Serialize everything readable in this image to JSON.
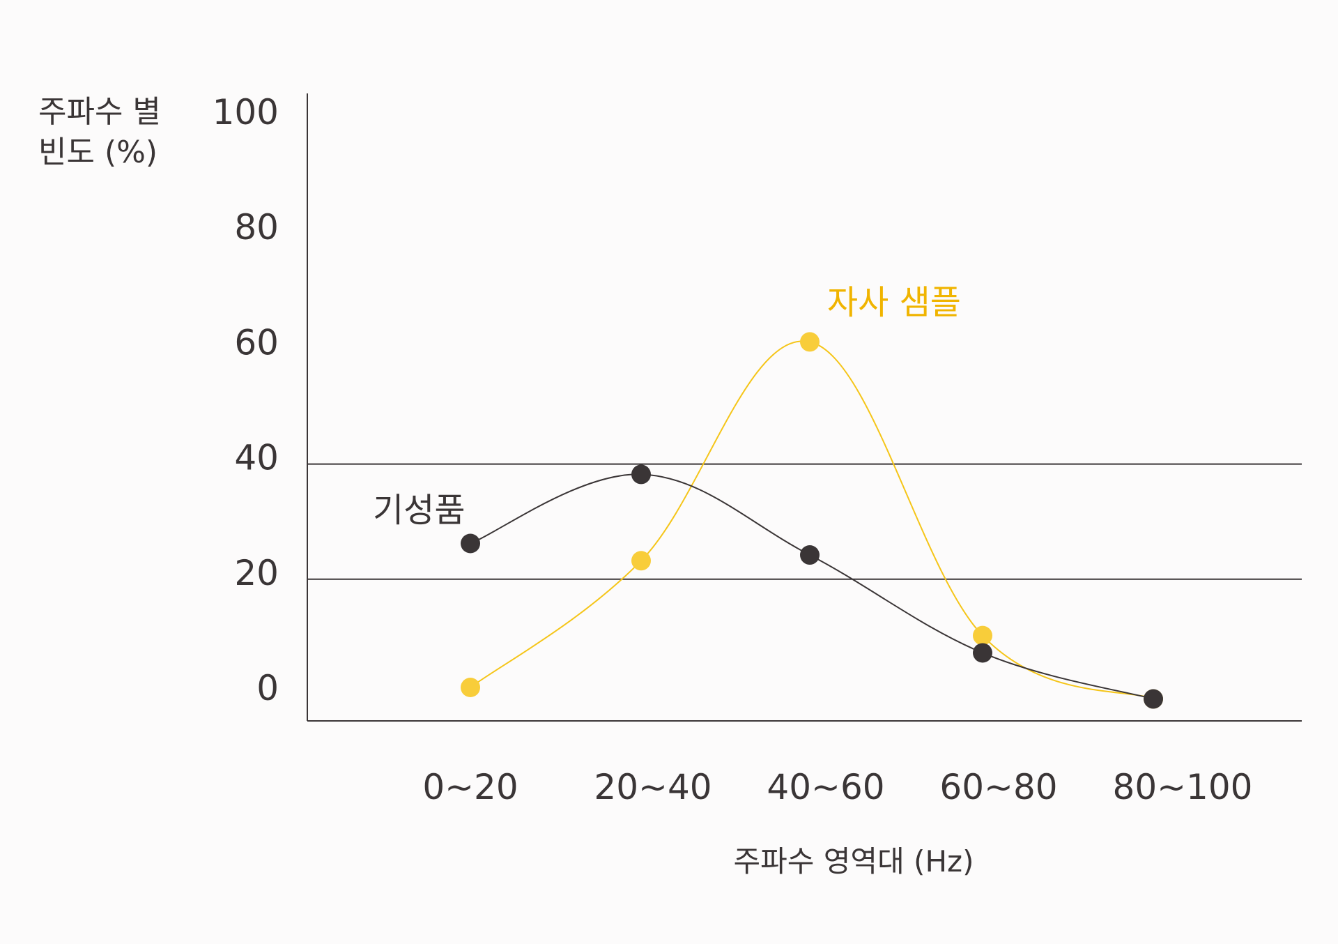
{
  "chart_data": {
    "type": "line",
    "ylabel": [
      "주파수 별",
      "빈도 (%)"
    ],
    "xlabel": "주파수 영역대 (Hz)",
    "categories": [
      "0~20",
      "20~40",
      "40~60",
      "60~80",
      "80~100"
    ],
    "yticks": [
      "100",
      "80",
      "60",
      "40",
      "20",
      "0"
    ],
    "ylim": [
      0,
      100
    ],
    "grid_lines_at": [
      20,
      40
    ],
    "series": [
      {
        "name": "기성품",
        "color": "#3a3536",
        "values": [
          25,
          37,
          23,
          6,
          -2
        ]
      },
      {
        "name": "자사 샘플",
        "color": "#f5c000",
        "values": [
          0,
          22,
          60,
          9,
          -2
        ]
      }
    ]
  }
}
